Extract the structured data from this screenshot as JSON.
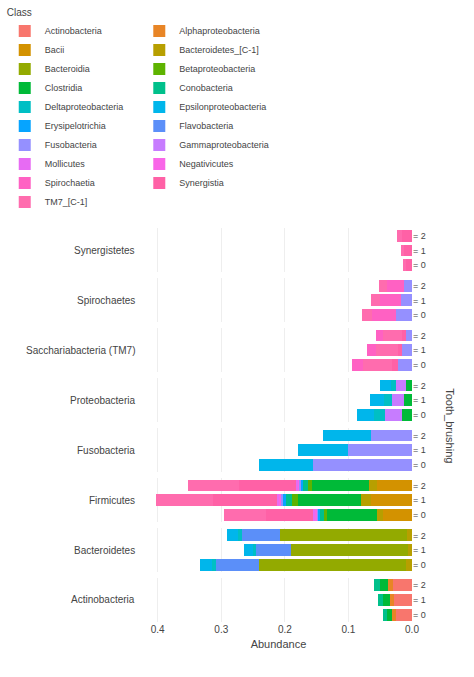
{
  "chart_data": [
    {
      "type": "bar",
      "orientation": "horizontal",
      "stacked": true,
      "grid": true,
      "tick_labels": "y",
      "title": "Synergistetes",
      "ylabel": "Tooth_brushing",
      "legend_title": "Class",
      "legend": "top",
      "categories": [
        "= 2",
        "= 1",
        "= 0"
      ],
      "xlim": [
        0.42,
        0
      ],
      "xticks": [
        {
          "value": 0,
          "label": "0.0"
        },
        0.1,
        0.2,
        0.3,
        0.4
      ],
      "series": [
        {
          "name": "Synergistia",
          "color": "#FF61A6",
          "values": [
            0.016,
            0.013,
            0.01
          ]
        },
        {
          "name": "TM7_[C-1]",
          "color": "#FF6CAE",
          "values": [
            0.007,
            0.005,
            0.004
          ]
        }
      ]
    },
    {
      "type": "bar",
      "orientation": "horizontal",
      "stacked": true,
      "grid": true,
      "tick_labels": "y",
      "title": "Spirochaetes",
      "categories": [
        "= 2",
        "= 1",
        "= 0"
      ],
      "xlim": [
        0.42,
        0
      ],
      "xticks": [
        {
          "value": 0,
          "label": "0.0"
        },
        0.1,
        0.2,
        0.3,
        0.4
      ],
      "series": [
        {
          "name": "Fusobacteria",
          "color": "#9590FF",
          "values": [
            0.012,
            0.018,
            0.025
          ]
        },
        {
          "name": "Spirochaetia",
          "color": "#FF61C3",
          "values": [
            0.028,
            0.032,
            0.038
          ]
        },
        {
          "name": "TM7_[C-1]",
          "color": "#FF6CAE",
          "values": [
            0.012,
            0.014,
            0.016
          ]
        }
      ]
    },
    {
      "type": "bar",
      "orientation": "horizontal",
      "stacked": true,
      "grid": true,
      "tick_labels": "y",
      "title": "Sacchariabacteria (TM7)",
      "categories": [
        "= 2",
        "= 1",
        "= 0"
      ],
      "xlim": [
        0.42,
        0
      ],
      "xticks": [
        {
          "value": 0,
          "label": "0.0"
        },
        0.1,
        0.2,
        0.3,
        0.4
      ],
      "series": [
        {
          "name": "Fusobacteria",
          "color": "#9590FF",
          "values": [
            0.01,
            0.015,
            0.022
          ]
        },
        {
          "name": "Synergistia",
          "color": "#FF61A6",
          "values": [
            0.005,
            0.007,
            0.01
          ]
        },
        {
          "name": "TM7_[C-1]",
          "color": "#FF6CAE",
          "values": [
            0.03,
            0.035,
            0.045
          ]
        },
        {
          "name": "Spirochaetia",
          "color": "#FF61C3",
          "values": [
            0.012,
            0.014,
            0.018
          ]
        }
      ]
    },
    {
      "type": "bar",
      "orientation": "horizontal",
      "stacked": true,
      "grid": true,
      "tick_labels": "y",
      "title": "Proteobacteria",
      "categories": [
        "= 2",
        "= 1",
        "= 0"
      ],
      "xlim": [
        0.42,
        0
      ],
      "xticks": [
        {
          "value": 0,
          "label": "0.0"
        },
        0.1,
        0.2,
        0.3,
        0.4
      ],
      "series": [
        {
          "name": "Clostridia",
          "color": "#00BA38",
          "values": [
            0.01,
            0.012,
            0.015
          ]
        },
        {
          "name": "Gammaproteobacteria",
          "color": "#C77CFF",
          "values": [
            0.015,
            0.02,
            0.028
          ]
        },
        {
          "name": "Deltaproteobacteria",
          "color": "#00BFC4",
          "values": [
            0.008,
            0.012,
            0.016
          ]
        },
        {
          "name": "Epsilonproteobacteria",
          "color": "#00B6EB",
          "values": [
            0.018,
            0.022,
            0.028
          ]
        }
      ]
    },
    {
      "type": "bar",
      "orientation": "horizontal",
      "stacked": true,
      "grid": true,
      "tick_labels": "y",
      "title": "Fusobacteria",
      "categories": [
        "= 2",
        "= 1",
        "= 0"
      ],
      "xlim": [
        0.42,
        0
      ],
      "xticks": [
        {
          "value": 0,
          "label": "0.0"
        },
        0.1,
        0.2,
        0.3,
        0.4
      ],
      "series": [
        {
          "name": "Fusobacteria",
          "color": "#9590FF",
          "values": [
            0.065,
            0.1,
            0.155
          ]
        },
        {
          "name": "Epsilonproteobacteria",
          "color": "#00B6EB",
          "values": [
            0.075,
            0.08,
            0.085
          ]
        }
      ]
    },
    {
      "type": "bar",
      "orientation": "horizontal",
      "stacked": true,
      "grid": true,
      "tick_labels": "y",
      "title": "Firmicutes",
      "categories": [
        "= 2",
        "= 1",
        "= 0"
      ],
      "xlim": [
        0.42,
        0
      ],
      "xticks": [
        {
          "value": 0,
          "label": "0.0"
        },
        0.1,
        0.2,
        0.3,
        0.4
      ],
      "series": [
        {
          "name": "Bacii",
          "color": "#D39200",
          "values": [
            0.055,
            0.065,
            0.045
          ]
        },
        {
          "name": "Bacteroidetes_[C-1]",
          "color": "#B79F00",
          "values": [
            0.012,
            0.015,
            0.01
          ]
        },
        {
          "name": "Clostridia",
          "color": "#00BA38",
          "values": [
            0.09,
            0.1,
            0.078
          ]
        },
        {
          "name": "Betaproteobacteria",
          "color": "#5EB300",
          "values": [
            0.006,
            0.008,
            0.005
          ]
        },
        {
          "name": "Conobacteria",
          "color": "#00C08B",
          "values": [
            0.008,
            0.01,
            0.007
          ]
        },
        {
          "name": "Erysipelotrichia",
          "color": "#06A4FF",
          "values": [
            0.005,
            0.006,
            0.004
          ]
        },
        {
          "name": "Fusobacteria",
          "color": "#9590FF",
          "values": [
            0.002,
            0.003,
            0.002
          ]
        },
        {
          "name": "Negativicutes",
          "color": "#F966E8",
          "values": [
            0.002,
            0.003,
            0.002
          ]
        },
        {
          "name": "Mollicutes",
          "color": "#E76BF3",
          "values": [
            0.002,
            0.003,
            0.002
          ]
        },
        {
          "name": "Synergistia",
          "color": "#FF61A6",
          "values": [
            0.09,
            0.1,
            0.075
          ]
        },
        {
          "name": "TM7_[C-1]",
          "color": "#FF6CAE",
          "values": [
            0.08,
            0.09,
            0.065
          ]
        }
      ]
    },
    {
      "type": "bar",
      "orientation": "horizontal",
      "stacked": true,
      "grid": true,
      "tick_labels": "y",
      "title": "Bacteroidetes",
      "categories": [
        "= 2",
        "= 1",
        "= 0"
      ],
      "xlim": [
        0.42,
        0
      ],
      "xticks": [
        {
          "value": 0,
          "label": "0.0"
        },
        0.1,
        0.2,
        0.3,
        0.4
      ],
      "series": [
        {
          "name": "Bacteroidetes_[C-1]",
          "color": "#B79F00",
          "values": [
            0.008,
            0.006,
            0.01
          ]
        },
        {
          "name": "Bacteroidia",
          "color": "#93AA00",
          "values": [
            0.2,
            0.185,
            0.23
          ]
        },
        {
          "name": "Flavobacteria",
          "color": "#5B8FF9",
          "values": [
            0.06,
            0.055,
            0.068
          ]
        },
        {
          "name": "Deltaproteobacteria",
          "color": "#00BFC4",
          "values": [
            0.005,
            0.004,
            0.006
          ]
        },
        {
          "name": "Epsilonproteobacteria",
          "color": "#00B6EB",
          "values": [
            0.018,
            0.015,
            0.02
          ]
        }
      ]
    },
    {
      "type": "bar",
      "orientation": "horizontal",
      "stacked": true,
      "grid": true,
      "title": "Actinobacteria",
      "xlabel": "Abundance",
      "categories": [
        "= 2",
        "= 1",
        "= 0"
      ],
      "xlim": [
        0.42,
        0
      ],
      "xticks": [
        {
          "value": 0,
          "label": "0.0"
        },
        0.1,
        0.2,
        0.3,
        0.4
      ],
      "series": [
        {
          "name": "Actinobacteria",
          "color": "#F8766D",
          "values": [
            0.03,
            0.028,
            0.025
          ]
        },
        {
          "name": "Alphaproteobacteria",
          "color": "#E88526",
          "values": [
            0.008,
            0.007,
            0.006
          ]
        },
        {
          "name": "Clostridia",
          "color": "#00BA38",
          "values": [
            0.012,
            0.01,
            0.008
          ]
        },
        {
          "name": "Conobacteria",
          "color": "#00C08B",
          "values": [
            0.01,
            0.008,
            0.007
          ]
        }
      ]
    }
  ]
}
